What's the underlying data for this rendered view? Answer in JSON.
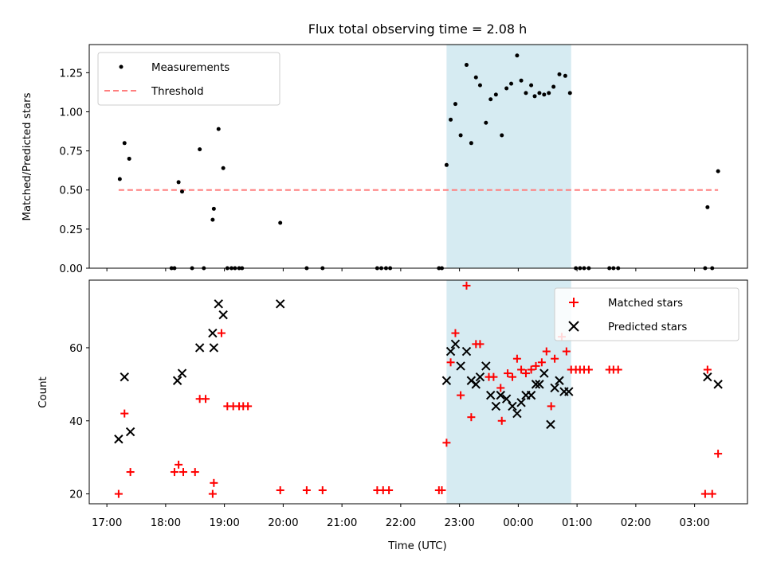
{
  "chart_data": {
    "type": "scatter",
    "title": "Flux total observing time = 2.08 h",
    "xlabel": "Time (UTC)",
    "x_unit": "hours since 00:00 UTC (negative = previous day)",
    "xlim": [
      -7.3,
      3.9
    ],
    "x_ticks": [
      -7,
      -6,
      -5,
      -4,
      -3,
      -2,
      -1,
      0,
      1,
      2,
      3
    ],
    "x_tick_labels": [
      "17:00",
      "18:00",
      "19:00",
      "20:00",
      "21:00",
      "22:00",
      "23:00",
      "00:00",
      "01:00",
      "02:00",
      "03:00"
    ],
    "shaded_interval": [
      -1.22,
      0.9
    ],
    "shade_color": "#add8e6",
    "top_panel": {
      "ylabel": "Matched/Predicted stars",
      "ylim": [
        0,
        1.43
      ],
      "y_ticks": [
        0,
        0.25,
        0.5,
        0.75,
        1.0,
        1.25
      ],
      "y_tick_labels": [
        "0.00",
        "0.25",
        "0.50",
        "0.75",
        "1.00",
        "1.25"
      ],
      "threshold": {
        "label": "Threshold",
        "value": 0.5,
        "x_range": [
          -6.8,
          3.4
        ],
        "color": "#ff7f7f"
      },
      "measurements": {
        "label": "Measurements",
        "color": "#000000",
        "points": [
          [
            -6.78,
            0.57
          ],
          [
            -6.7,
            0.8
          ],
          [
            -6.62,
            0.7
          ],
          [
            -5.9,
            0.0
          ],
          [
            -5.85,
            0.0
          ],
          [
            -5.78,
            0.55
          ],
          [
            -5.72,
            0.49
          ],
          [
            -5.55,
            0.0
          ],
          [
            -5.42,
            0.76
          ],
          [
            -5.35,
            0.0
          ],
          [
            -5.2,
            0.31
          ],
          [
            -5.18,
            0.38
          ],
          [
            -5.1,
            0.89
          ],
          [
            -5.02,
            0.64
          ],
          [
            -4.95,
            0.0
          ],
          [
            -4.88,
            0.0
          ],
          [
            -4.82,
            0.0
          ],
          [
            -4.75,
            0.0
          ],
          [
            -4.7,
            0.0
          ],
          [
            -4.05,
            0.29
          ],
          [
            -3.6,
            0.0
          ],
          [
            -3.33,
            0.0
          ],
          [
            -2.4,
            0.0
          ],
          [
            -2.33,
            0.0
          ],
          [
            -2.25,
            0.0
          ],
          [
            -2.18,
            0.0
          ],
          [
            -1.35,
            0.0
          ],
          [
            -1.3,
            0.0
          ],
          [
            -1.22,
            0.66
          ],
          [
            -1.15,
            0.95
          ],
          [
            -1.07,
            1.05
          ],
          [
            -0.98,
            0.85
          ],
          [
            -0.88,
            1.3
          ],
          [
            -0.8,
            0.8
          ],
          [
            -0.72,
            1.22
          ],
          [
            -0.65,
            1.17
          ],
          [
            -0.55,
            0.93
          ],
          [
            -0.47,
            1.08
          ],
          [
            -0.38,
            1.11
          ],
          [
            -0.28,
            0.85
          ],
          [
            -0.2,
            1.15
          ],
          [
            -0.12,
            1.18
          ],
          [
            -0.02,
            1.36
          ],
          [
            0.05,
            1.2
          ],
          [
            0.13,
            1.12
          ],
          [
            0.22,
            1.17
          ],
          [
            0.28,
            1.1
          ],
          [
            0.36,
            1.12
          ],
          [
            0.44,
            1.11
          ],
          [
            0.52,
            1.12
          ],
          [
            0.6,
            1.16
          ],
          [
            0.7,
            1.24
          ],
          [
            0.8,
            1.23
          ],
          [
            0.88,
            1.12
          ],
          [
            0.98,
            0.0
          ],
          [
            1.05,
            0.0
          ],
          [
            1.12,
            0.0
          ],
          [
            1.2,
            0.0
          ],
          [
            1.55,
            0.0
          ],
          [
            1.62,
            0.0
          ],
          [
            1.7,
            0.0
          ],
          [
            3.18,
            0.0
          ],
          [
            3.22,
            0.39
          ],
          [
            3.3,
            0.0
          ],
          [
            3.4,
            0.62
          ]
        ]
      }
    },
    "bottom_panel": {
      "ylabel": "Count",
      "ylim": [
        17.3,
        78.5
      ],
      "y_ticks": [
        20,
        40,
        60
      ],
      "y_tick_labels": [
        "20",
        "40",
        "60"
      ],
      "series": [
        {
          "name": "Matched stars",
          "marker": "plus",
          "color": "#ff0000",
          "points": [
            [
              -6.8,
              20
            ],
            [
              -6.7,
              42
            ],
            [
              -6.6,
              26
            ],
            [
              -5.85,
              26
            ],
            [
              -5.78,
              28
            ],
            [
              -5.7,
              26
            ],
            [
              -5.5,
              26
            ],
            [
              -5.42,
              46
            ],
            [
              -5.32,
              46
            ],
            [
              -5.2,
              20
            ],
            [
              -5.18,
              23
            ],
            [
              -5.05,
              64
            ],
            [
              -4.95,
              44
            ],
            [
              -4.85,
              44
            ],
            [
              -4.75,
              44
            ],
            [
              -4.68,
              44
            ],
            [
              -4.6,
              44
            ],
            [
              -4.05,
              21
            ],
            [
              -3.6,
              21
            ],
            [
              -3.33,
              21
            ],
            [
              -2.4,
              21
            ],
            [
              -2.3,
              21
            ],
            [
              -2.2,
              21
            ],
            [
              -1.35,
              21
            ],
            [
              -1.3,
              21
            ],
            [
              -1.22,
              34
            ],
            [
              -1.15,
              56
            ],
            [
              -1.07,
              64
            ],
            [
              -0.98,
              47
            ],
            [
              -0.88,
              77
            ],
            [
              -0.8,
              41
            ],
            [
              -0.72,
              61
            ],
            [
              -0.65,
              61
            ],
            [
              -0.5,
              52
            ],
            [
              -0.42,
              52
            ],
            [
              -0.3,
              49
            ],
            [
              -0.28,
              40
            ],
            [
              -0.18,
              53
            ],
            [
              -0.1,
              52
            ],
            [
              -0.02,
              57
            ],
            [
              0.05,
              54
            ],
            [
              0.13,
              53
            ],
            [
              0.22,
              54
            ],
            [
              0.3,
              55
            ],
            [
              0.4,
              56
            ],
            [
              0.48,
              59
            ],
            [
              0.56,
              44
            ],
            [
              0.62,
              57
            ],
            [
              0.74,
              63
            ],
            [
              0.82,
              59
            ],
            [
              0.9,
              54
            ],
            [
              0.98,
              54
            ],
            [
              1.05,
              54
            ],
            [
              1.12,
              54
            ],
            [
              1.2,
              54
            ],
            [
              1.55,
              54
            ],
            [
              1.62,
              54
            ],
            [
              1.7,
              54
            ],
            [
              3.18,
              20
            ],
            [
              3.22,
              54
            ],
            [
              3.3,
              20
            ],
            [
              3.4,
              31
            ]
          ]
        },
        {
          "name": "Predicted stars",
          "marker": "x",
          "color": "#000000",
          "points": [
            [
              -6.8,
              35
            ],
            [
              -6.7,
              52
            ],
            [
              -6.6,
              37
            ],
            [
              -5.8,
              51
            ],
            [
              -5.72,
              53
            ],
            [
              -5.42,
              60
            ],
            [
              -5.2,
              64
            ],
            [
              -5.18,
              60
            ],
            [
              -5.1,
              72
            ],
            [
              -5.02,
              69
            ],
            [
              -4.05,
              72
            ],
            [
              -1.22,
              51
            ],
            [
              -1.15,
              59
            ],
            [
              -1.07,
              61
            ],
            [
              -0.98,
              55
            ],
            [
              -0.88,
              59
            ],
            [
              -0.8,
              51
            ],
            [
              -0.72,
              50
            ],
            [
              -0.65,
              52
            ],
            [
              -0.55,
              55
            ],
            [
              -0.47,
              47
            ],
            [
              -0.38,
              44
            ],
            [
              -0.3,
              47
            ],
            [
              -0.2,
              46
            ],
            [
              -0.1,
              44
            ],
            [
              -0.02,
              42
            ],
            [
              0.05,
              45
            ],
            [
              0.13,
              47
            ],
            [
              0.22,
              47
            ],
            [
              0.3,
              50
            ],
            [
              0.36,
              50
            ],
            [
              0.44,
              53
            ],
            [
              0.55,
              39
            ],
            [
              0.62,
              49
            ],
            [
              0.7,
              51
            ],
            [
              0.78,
              48
            ],
            [
              0.86,
              48
            ],
            [
              3.22,
              52
            ],
            [
              3.4,
              50
            ]
          ]
        }
      ]
    }
  }
}
